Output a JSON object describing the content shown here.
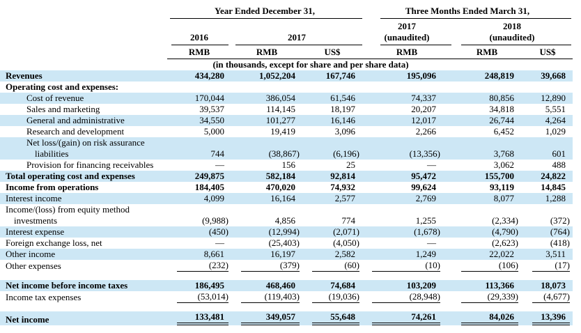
{
  "colors": {
    "row_shade": "#cde7f5",
    "text": "#000000",
    "rule": "#000000"
  },
  "header": {
    "group1": "Year Ended December 31,",
    "group2": "Three Months Ended March 31,",
    "y2016": "2016",
    "y2017": "2017",
    "q2017": {
      "line1": "2017",
      "line2": "(unaudited)"
    },
    "q2018": {
      "line1": "2018",
      "line2": "(unaudited)"
    },
    "currencies": [
      "RMB",
      "RMB",
      "US$",
      "RMB",
      "RMB",
      "US$"
    ],
    "note": "(in thousands, except for share and per share data)"
  },
  "table": {
    "rows": [
      {
        "label": "Revenues",
        "bold": true,
        "shaded": true,
        "values": [
          "434,280",
          "1,052,204",
          "167,746",
          "195,096",
          "248,819",
          "39,668"
        ]
      },
      {
        "label": "Operating cost and expenses:",
        "bold": true,
        "shaded": false,
        "values": [
          "",
          "",
          "",
          "",
          "",
          ""
        ]
      },
      {
        "label": "Cost of revenue",
        "indent": 1,
        "shaded": true,
        "values": [
          "170,044",
          "386,054",
          "61,546",
          "74,337",
          "80,856",
          "12,890"
        ]
      },
      {
        "label": "Sales and marketing",
        "indent": 1,
        "shaded": false,
        "values": [
          "39,537",
          "114,145",
          "18,197",
          "20,207",
          "34,818",
          "5,551"
        ]
      },
      {
        "label": "General and administrative",
        "indent": 1,
        "shaded": true,
        "values": [
          "34,550",
          "101,277",
          "16,146",
          "12,017",
          "26,744",
          "4,264"
        ]
      },
      {
        "label": "Research and development",
        "indent": 1,
        "shaded": false,
        "values": [
          "5,000",
          "19,419",
          "3,096",
          "2,266",
          "6,452",
          "1,029"
        ]
      },
      {
        "label": "Net loss/(gain) on risk assurance",
        "label2": "liabilities",
        "indent": 1,
        "shaded": true,
        "values": [
          "744",
          "(38,867)",
          "(6,196)",
          "(13,356)",
          "3,768",
          "601"
        ]
      },
      {
        "label": "Provision for financing receivables",
        "indent": 1,
        "shaded": false,
        "values": [
          "—",
          "156",
          "25",
          "—",
          "3,062",
          "488"
        ]
      },
      {
        "label": "Total operating cost and expenses",
        "bold": true,
        "shaded": true,
        "values": [
          "249,875",
          "582,184",
          "92,814",
          "95,472",
          "155,700",
          "24,822"
        ]
      },
      {
        "label": "Income from operations",
        "bold": true,
        "shaded": false,
        "values": [
          "184,405",
          "470,020",
          "74,932",
          "99,624",
          "93,119",
          "14,845"
        ]
      },
      {
        "label": "Interest income",
        "shaded": true,
        "values": [
          "4,099",
          "16,164",
          "2,577",
          "2,769",
          "8,077",
          "1,288"
        ]
      },
      {
        "label": "Income/(loss) from equity method",
        "label2": "investments",
        "shaded": false,
        "values": [
          "(9,988)",
          "4,856",
          "774",
          "1,255",
          "(2,334)",
          "(372)"
        ]
      },
      {
        "label": "Interest expense",
        "shaded": true,
        "values": [
          "(450)",
          "(12,994)",
          "(2,071)",
          "(1,678)",
          "(4,790)",
          "(764)"
        ]
      },
      {
        "label": "Foreign exchange loss, net",
        "shaded": false,
        "values": [
          "—",
          "(25,403)",
          "(4,050)",
          "—",
          "(2,623)",
          "(418)"
        ]
      },
      {
        "label": "Other income",
        "shaded": true,
        "values": [
          "8,661",
          "16,197",
          "2,582",
          "1,249",
          "22,022",
          "3,511"
        ]
      },
      {
        "label": "Other expenses",
        "shaded": false,
        "rule": "single",
        "spacer": true,
        "values": [
          "(232)",
          "(379)",
          "(60)",
          "(10)",
          "(106)",
          "(17)"
        ]
      },
      {
        "label": "Net income before income taxes",
        "bold": true,
        "shaded": true,
        "values": [
          "186,495",
          "468,460",
          "74,684",
          "103,209",
          "113,366",
          "18,073"
        ]
      },
      {
        "label": "Income tax expenses",
        "shaded": false,
        "rule": "single",
        "spacer": true,
        "values": [
          "(53,014)",
          "(119,403)",
          "(19,036)",
          "(28,948)",
          "(29,339)",
          "(4,677)"
        ]
      },
      {
        "label": "Net income",
        "bold": true,
        "shaded": true,
        "rule": "double",
        "values": [
          "133,481",
          "349,057",
          "55,648",
          "74,261",
          "84,026",
          "13,396"
        ]
      }
    ]
  }
}
